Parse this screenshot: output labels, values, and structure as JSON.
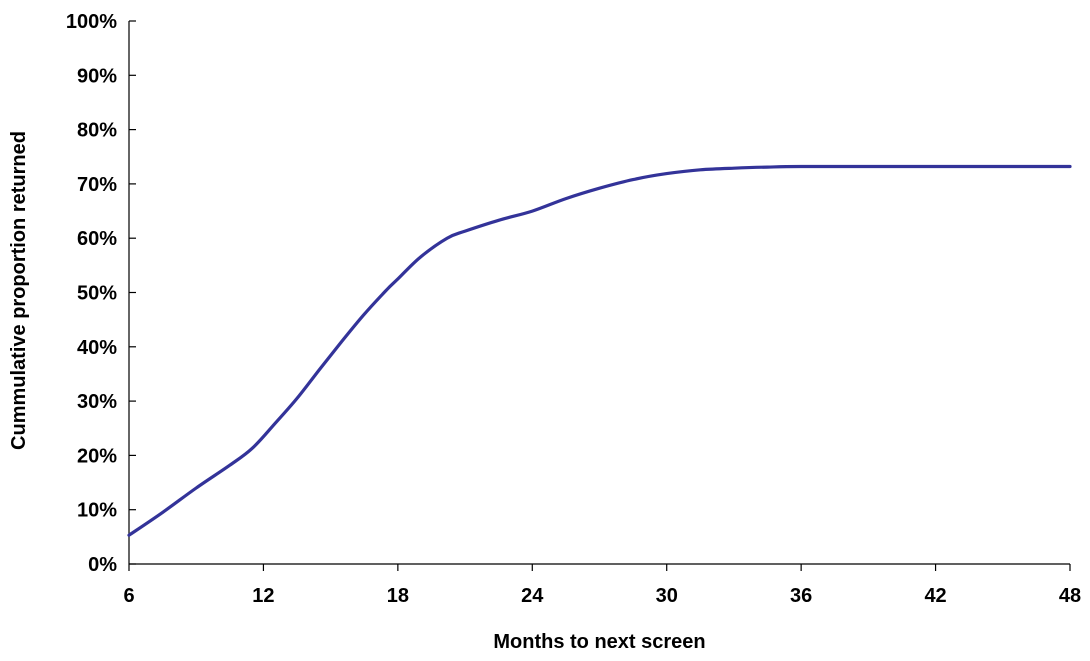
{
  "chart_data": {
    "type": "line",
    "title": "",
    "xlabel": "Months to next screen",
    "ylabel": "Cummulative proportion returned",
    "xlim": [
      6,
      48
    ],
    "ylim": [
      0,
      100
    ],
    "x_ticks": [
      6,
      12,
      18,
      24,
      30,
      36,
      42,
      48
    ],
    "x_tick_labels": [
      "6",
      "12",
      "18",
      "24",
      "30",
      "36",
      "42",
      "48"
    ],
    "y_ticks": [
      0,
      10,
      20,
      30,
      40,
      50,
      60,
      70,
      80,
      90,
      100
    ],
    "y_tick_labels": [
      "0%",
      "10%",
      "20%",
      "30%",
      "40%",
      "50%",
      "60%",
      "70%",
      "80%",
      "90%",
      "100%"
    ],
    "grid": false,
    "legend": "none",
    "series": [
      {
        "color": "#333399",
        "x": [
          6,
          7.5,
          9,
          10.5,
          11.5,
          12.5,
          13.5,
          14.5,
          15.5,
          16.5,
          17.5,
          18,
          19,
          20.2,
          21,
          22.5,
          24,
          25.5,
          27,
          28.5,
          30,
          31.5,
          33,
          34.5,
          36,
          40,
          44,
          48
        ],
        "y": [
          5.3,
          9.5,
          14.0,
          18.2,
          21.3,
          25.8,
          30.5,
          35.8,
          41.0,
          46.0,
          50.5,
          52.5,
          56.5,
          60.0,
          61.3,
          63.3,
          65.0,
          67.3,
          69.2,
          70.8,
          71.9,
          72.6,
          72.9,
          73.1,
          73.2,
          73.2,
          73.2,
          73.2
        ]
      }
    ]
  }
}
